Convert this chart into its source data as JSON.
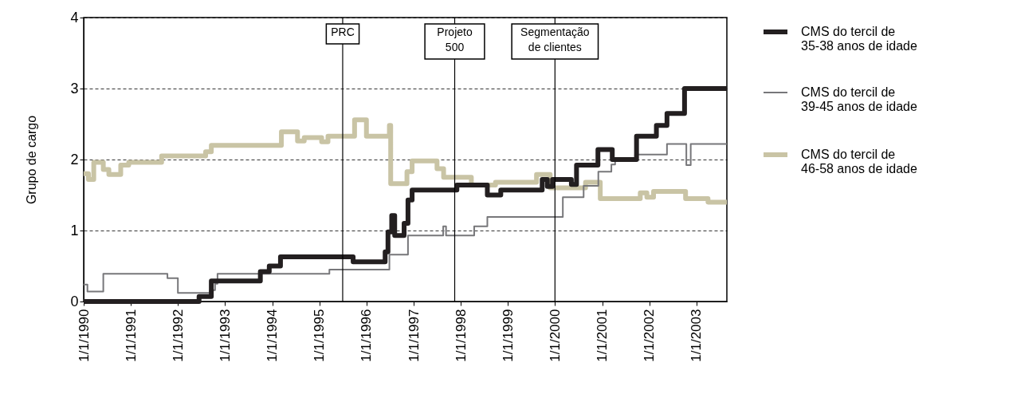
{
  "chart_data": {
    "type": "step",
    "ylabel": "Grupo de cargo",
    "xlim": [
      "1990-01-01",
      "2003-08-25"
    ],
    "xticks": [
      {
        "value": "1990-01-01",
        "label": "1/1/1990"
      },
      {
        "value": "1991-01-01",
        "label": "1/1/1991"
      },
      {
        "value": "1992-01-01",
        "label": "1/1/1992"
      },
      {
        "value": "1993-01-01",
        "label": "1/1/1993"
      },
      {
        "value": "1994-01-01",
        "label": "1/1/1994"
      },
      {
        "value": "1995-01-01",
        "label": "1/1/1995"
      },
      {
        "value": "1996-01-01",
        "label": "1/1/1996"
      },
      {
        "value": "1997-01-01",
        "label": "1/1/1997"
      },
      {
        "value": "1998-01-01",
        "label": "1/1/1998"
      },
      {
        "value": "1999-01-01",
        "label": "1/1/1999"
      },
      {
        "value": "2000-01-01",
        "label": "1/1/2000"
      },
      {
        "value": "2001-01-01",
        "label": "1/1/2001"
      },
      {
        "value": "2002-01-01",
        "label": "1/1/2002"
      },
      {
        "value": "2003-01-01",
        "label": "1/1/2003"
      }
    ],
    "ylim": [
      0,
      4
    ],
    "yticks": [
      0,
      1,
      2,
      3,
      4
    ],
    "grid": "y",
    "legend": "right",
    "line_style": "solid",
    "marker": "none",
    "series": [
      {
        "name": "CMS do tercil de\n35-38 anos de idade",
        "color": "#231f20",
        "x": [
          "1990-01-01",
          "1992-06-13",
          "1992-09-16",
          "1993-10-01",
          "1993-12-09",
          "1994-03-06",
          "1995-09-20",
          "1996-05-25",
          "1996-06-16",
          "1996-07-15",
          "1996-08-07",
          "1996-10-19",
          "1996-11-18",
          "1996-12-20",
          "1997-12-02",
          "1998-07-26",
          "1998-11-07",
          "1999-09-24",
          "1999-11-03",
          "1999-12-13",
          "2000-05-07",
          "2000-06-16",
          "2000-11-29",
          "2001-03-20",
          "2001-09-24",
          "2002-02-25",
          "2002-05-18",
          "2002-10-01",
          "2003-08-25"
        ],
        "values": [
          0,
          0.07,
          0.29,
          0.42,
          0.5,
          0.63,
          0.56,
          0.7,
          0.98,
          1.21,
          0.93,
          1.1,
          1.43,
          1.57,
          1.64,
          1.5,
          1.57,
          1.72,
          1.62,
          1.72,
          1.65,
          1.92,
          2.14,
          2.0,
          2.33,
          2.48,
          2.65,
          3.0,
          3.0
        ]
      },
      {
        "name": "CMS do tercil de\n39-45 anos de idade",
        "color": "#77777a",
        "x": [
          "1990-01-01",
          "1990-01-30",
          "1990-06-02",
          "1991-10-12",
          "1992-01-01",
          "1992-09-06",
          "1992-10-15",
          "1992-11-03",
          "1995-03-20",
          "1996-06-27",
          "1996-11-18",
          "1997-08-18",
          "1997-09-09",
          "1998-04-15",
          "1998-07-26",
          "2000-03-02",
          "2000-08-10",
          "2000-12-02",
          "2001-03-13",
          "2001-04-11",
          "2001-09-13",
          "2002-05-18",
          "2002-10-15",
          "2002-11-18",
          "2003-08-25"
        ],
        "values": [
          0.24,
          0.14,
          0.39,
          0.33,
          0.12,
          0.16,
          0.25,
          0.39,
          0.45,
          0.66,
          0.93,
          1.06,
          0.93,
          1.06,
          1.19,
          1.47,
          1.63,
          1.83,
          1.93,
          2.0,
          2.07,
          2.22,
          1.92,
          2.22,
          2.22
        ]
      },
      {
        "name": "CMS do tercil de\n46-58 anos de idade",
        "color": "#c9c4a5",
        "x": [
          "1990-01-01",
          "1990-02-07",
          "1990-03-20",
          "1990-06-02",
          "1990-07-15",
          "1990-10-15",
          "1990-12-16",
          "1991-08-28",
          "1992-08-03",
          "1992-09-16",
          "1994-03-13",
          "1994-07-16",
          "1994-09-06",
          "1995-01-19",
          "1995-03-09",
          "1995-10-01",
          "1996-01-01",
          "1996-06-27",
          "1996-07-07",
          "1996-11-10",
          "1996-12-20",
          "1997-07-01",
          "1997-08-21",
          "1998-03-24",
          "1998-09-27",
          "1999-08-11",
          "1999-11-25",
          "2000-08-25",
          "2000-12-17",
          "2001-10-23",
          "2001-12-13",
          "2002-02-03",
          "2002-10-09",
          "2003-04-01",
          "2003-08-25"
        ],
        "values": [
          1.8,
          1.72,
          1.96,
          1.86,
          1.79,
          1.92,
          1.96,
          2.05,
          2.11,
          2.2,
          2.39,
          2.26,
          2.31,
          2.25,
          2.33,
          2.56,
          2.33,
          2.48,
          1.66,
          1.83,
          1.98,
          1.87,
          1.75,
          1.64,
          1.68,
          1.79,
          1.6,
          1.68,
          1.45,
          1.53,
          1.47,
          1.55,
          1.45,
          1.4,
          1.4
        ]
      }
    ],
    "ref_lines": [
      {
        "axis": "x",
        "value": "1995-07-01",
        "label": "PRC"
      },
      {
        "axis": "x",
        "value": "1997-11-15",
        "label": "Projeto\n500"
      },
      {
        "axis": "x",
        "value": "2000-01-01",
        "label": "Segmentação\nde clientes"
      }
    ]
  }
}
